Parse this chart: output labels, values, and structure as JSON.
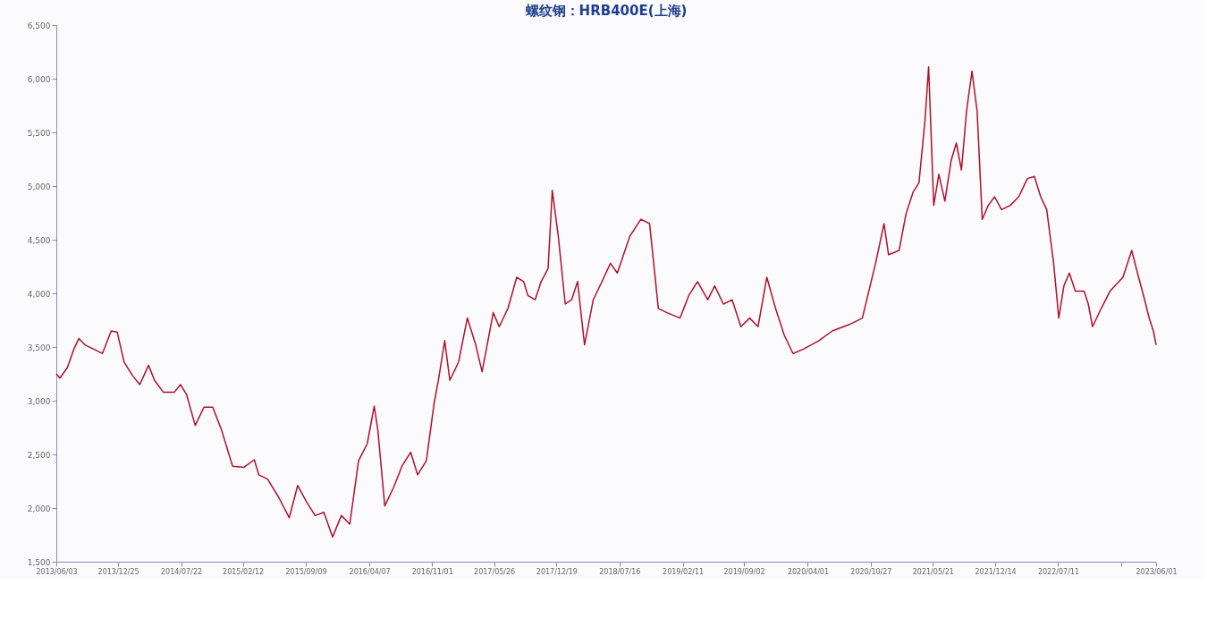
{
  "chart_data": {
    "type": "line",
    "title": "螺纹钢：HRB400E(上海)",
    "x": [
      "2013-06-03",
      "2013-06-15",
      "2013-07-10",
      "2013-07-31",
      "2013-08-17",
      "2013-09-06",
      "2013-10-05",
      "2013-11-03",
      "2013-12-02",
      "2013-12-22",
      "2014-01-14",
      "2014-02-12",
      "2014-03-07",
      "2014-04-05",
      "2014-04-25",
      "2014-05-24",
      "2014-06-30",
      "2014-07-20",
      "2014-08-09",
      "2014-09-07",
      "2014-10-06",
      "2014-11-04",
      "2014-12-03",
      "2015-01-09",
      "2015-02-16",
      "2015-03-22",
      "2015-04-06",
      "2015-05-05",
      "2015-06-11",
      "2015-07-16",
      "2015-08-13",
      "2015-09-11",
      "2015-10-10",
      "2015-11-08",
      "2015-12-07",
      "2016-01-05",
      "2016-02-02",
      "2016-03-02",
      "2016-03-31",
      "2016-04-23",
      "2016-05-05",
      "2016-05-28",
      "2016-06-26",
      "2016-07-24",
      "2016-08-22",
      "2016-09-14",
      "2016-10-13",
      "2016-11-08",
      "2016-11-22",
      "2016-12-13",
      "2016-12-30",
      "2017-01-28",
      "2017-02-26",
      "2017-03-26",
      "2017-04-16",
      "2017-05-09",
      "2017-05-23",
      "2017-06-12",
      "2017-07-11",
      "2017-08-09",
      "2017-09-01",
      "2017-09-15",
      "2017-10-09",
      "2017-10-29",
      "2017-11-21",
      "2017-12-05",
      "2017-12-25",
      "2018-01-17",
      "2018-02-07",
      "2018-02-27",
      "2018-03-22",
      "2018-04-20",
      "2018-05-19",
      "2018-06-16",
      "2018-07-09",
      "2018-08-19",
      "2018-09-25",
      "2018-10-24",
      "2018-11-22",
      "2018-12-21",
      "2019-02-02",
      "2019-03-03",
      "2019-04-01",
      "2019-05-05",
      "2019-05-28",
      "2019-06-26",
      "2019-07-25",
      "2019-08-23",
      "2019-09-21",
      "2019-10-19",
      "2019-11-17",
      "2019-12-16",
      "2020-01-14",
      "2020-02-12",
      "2020-03-17",
      "2020-05-08",
      "2020-06-21",
      "2020-08-17",
      "2020-09-29",
      "2020-11-12",
      "2020-12-10",
      "2020-12-25",
      "2021-01-29",
      "2021-02-21",
      "2021-03-16",
      "2021-04-05",
      "2021-04-25",
      "2021-05-07",
      "2021-05-24",
      "2021-06-10",
      "2021-06-30",
      "2021-07-21",
      "2021-08-07",
      "2021-08-24",
      "2021-09-10",
      "2021-09-28",
      "2021-10-15",
      "2021-11-01",
      "2021-11-21",
      "2021-12-12",
      "2022-01-04",
      "2022-02-02",
      "2022-03-02",
      "2022-03-31",
      "2022-04-23",
      "2022-05-14",
      "2022-06-03",
      "2022-06-26",
      "2022-07-13",
      "2022-07-30",
      "2022-08-17",
      "2022-09-06",
      "2022-10-05",
      "2022-10-19",
      "2022-11-02",
      "2022-12-01",
      "2022-12-30",
      "2023-02-11",
      "2023-03-12",
      "2023-04-04",
      "2023-04-24",
      "2023-05-09",
      "2023-05-23",
      "2023-06-01"
    ],
    "series": [
      {
        "color": "#b0102a",
        "values": [
          3250,
          3210,
          3310,
          3480,
          3580,
          3520,
          3480,
          3440,
          3650,
          3640,
          3360,
          3230,
          3150,
          3330,
          3190,
          3080,
          3080,
          3150,
          3060,
          2770,
          2940,
          2940,
          2730,
          2390,
          2380,
          2450,
          2310,
          2270,
          2100,
          1910,
          2210,
          2060,
          1930,
          1960,
          1730,
          1930,
          1850,
          2440,
          2600,
          2950,
          2730,
          2020,
          2190,
          2390,
          2520,
          2310,
          2440,
          2980,
          3190,
          3560,
          3190,
          3360,
          3770,
          3520,
          3270,
          3610,
          3820,
          3690,
          3860,
          4150,
          4110,
          3980,
          3940,
          4110,
          4230,
          4960,
          4530,
          3900,
          3940,
          4110,
          3520,
          3940,
          4110,
          4280,
          4190,
          4530,
          4690,
          4650,
          3860,
          3820,
          3770,
          3980,
          4110,
          3940,
          4070,
          3900,
          3940,
          3690,
          3770,
          3690,
          4150,
          3860,
          3610,
          3440,
          3480,
          3560,
          3650,
          3710,
          3770,
          4280,
          4650,
          4360,
          4400,
          4740,
          4940,
          5030,
          5610,
          6110,
          4820,
          5110,
          4860,
          5240,
          5400,
          5150,
          5700,
          6070,
          5700,
          4690,
          4820,
          4900,
          4780,
          4820,
          4900,
          5070,
          5090,
          4900,
          4780,
          4280,
          3770,
          4070,
          4190,
          4020,
          4020,
          3900,
          3690,
          3860,
          4020,
          4150,
          4400,
          4150,
          3940,
          3770,
          3650,
          3520
        ]
      }
    ],
    "xlim": [
      "2013-06-03",
      "2023-06-01"
    ],
    "xticks": [
      {
        "value": "2013-06-03",
        "label": "2013/06/03"
      },
      {
        "value": "2013-12-25",
        "label": "2013/12/25"
      },
      {
        "value": "2014-07-22",
        "label": "2014/07/22"
      },
      {
        "value": "2015-02-12",
        "label": "2015/02/12"
      },
      {
        "value": "2015-09-09",
        "label": "2015/09/09"
      },
      {
        "value": "2016-04-07",
        "label": "2016/04/07"
      },
      {
        "value": "2016-11-01",
        "label": "2016/11/01"
      },
      {
        "value": "2017-05-26",
        "label": "2017/05/26"
      },
      {
        "value": "2017-12-19",
        "label": "2017/12/19"
      },
      {
        "value": "2018-07-16",
        "label": "2018/07/16"
      },
      {
        "value": "2019-02-11",
        "label": "2019/02/11"
      },
      {
        "value": "2019-09-02",
        "label": "2019/09/02"
      },
      {
        "value": "2020-04-01",
        "label": "2020/04/01"
      },
      {
        "value": "2020-10-27",
        "label": "2020/10/27"
      },
      {
        "value": "2021-05-21",
        "label": "2021/05/21"
      },
      {
        "value": "2021-12-14",
        "label": "2021/12/14"
      },
      {
        "value": "2022-07-11",
        "label": "2022/07/11"
      },
      {
        "value": "2023-02-04",
        "label": null
      },
      {
        "value": "2023-06-01",
        "label": "2023/06/01"
      }
    ],
    "ylim": [
      1500,
      6500
    ],
    "yticks": [
      {
        "value": 1500,
        "label": "1,500"
      },
      {
        "value": 2000,
        "label": "2,000"
      },
      {
        "value": 2500,
        "label": "2,500"
      },
      {
        "value": 3000,
        "label": "3,000"
      },
      {
        "value": 3500,
        "label": "3,500"
      },
      {
        "value": 4000,
        "label": "4,000"
      },
      {
        "value": 4500,
        "label": "4,500"
      },
      {
        "value": 5000,
        "label": "5,000"
      },
      {
        "value": 5500,
        "label": "5,500"
      },
      {
        "value": 6000,
        "label": "6,000"
      },
      {
        "value": 6500,
        "label": "6,500"
      }
    ],
    "grid": false,
    "legend": false,
    "line_style": "solid",
    "marker": "none"
  }
}
